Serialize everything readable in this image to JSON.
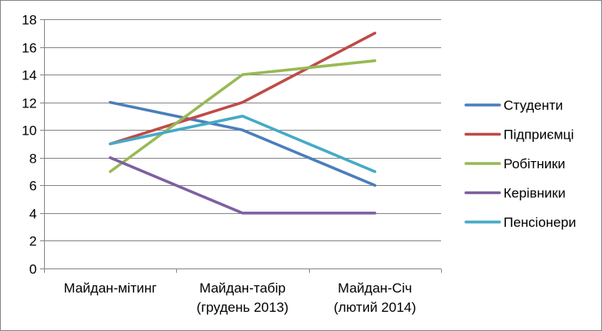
{
  "chart_data": {
    "type": "line",
    "title": "",
    "xlabel": "",
    "ylabel": "",
    "categories": [
      [
        "Майдан-мітинг"
      ],
      [
        "Майдан-табір",
        "(грудень 2013)"
      ],
      [
        "Майдан-Січ",
        "(лютий 2014)"
      ]
    ],
    "ylim": [
      0,
      18
    ],
    "yticks": [
      0,
      2,
      4,
      6,
      8,
      10,
      12,
      14,
      16,
      18
    ],
    "grid": true,
    "legend_position": "right",
    "series": [
      {
        "name": "Студенти",
        "values": [
          12,
          10,
          6
        ],
        "color": "#4a7ebb"
      },
      {
        "name": "Підприємці",
        "values": [
          9,
          12,
          17
        ],
        "color": "#be4b48"
      },
      {
        "name": "Робітники",
        "values": [
          7,
          14,
          15
        ],
        "color": "#98b954"
      },
      {
        "name": "Керівники",
        "values": [
          8,
          4,
          4
        ],
        "color": "#7d60a0"
      },
      {
        "name": "Пенсіонери",
        "values": [
          9,
          11,
          7
        ],
        "color": "#46aac5"
      }
    ]
  }
}
